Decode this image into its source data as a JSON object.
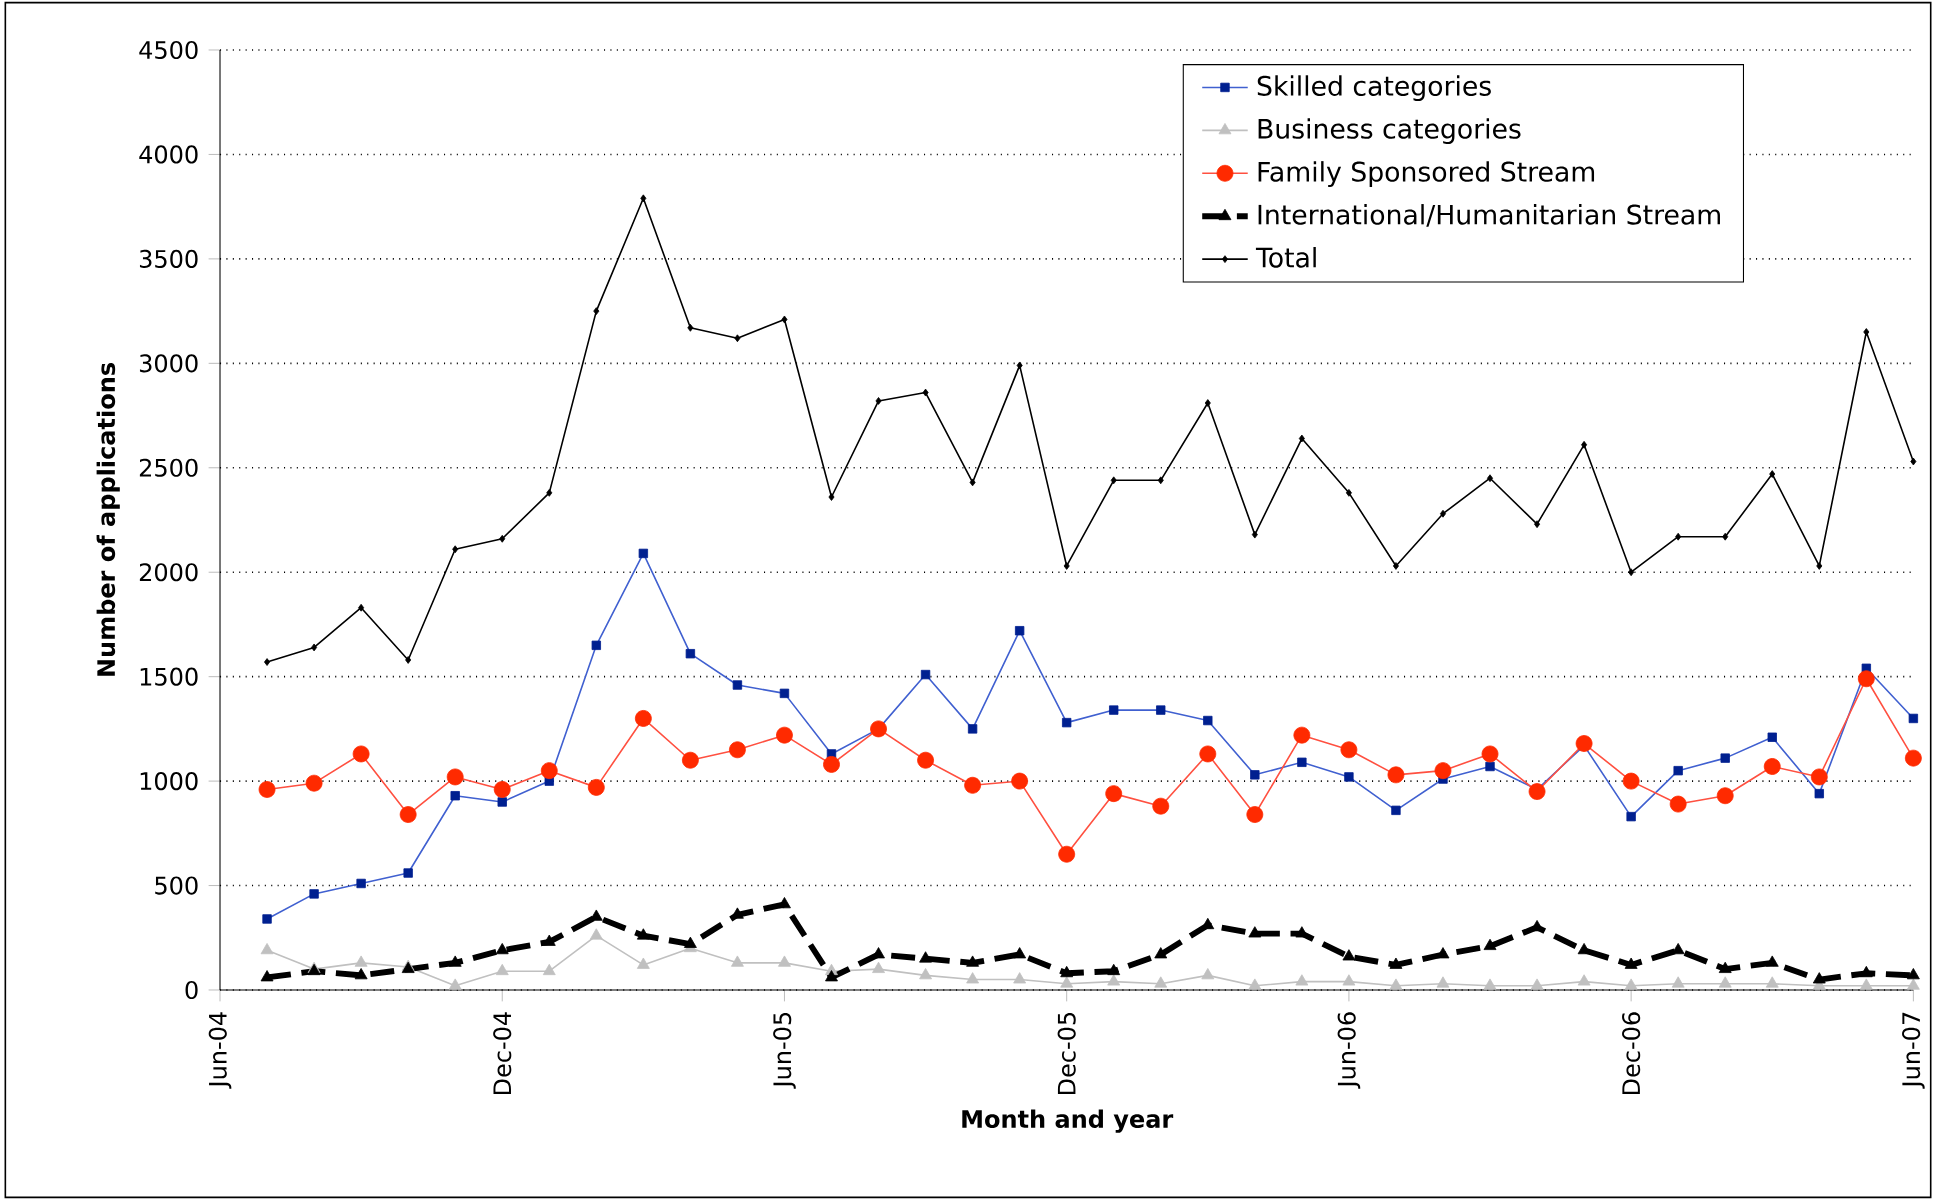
{
  "chart_data": {
    "type": "line",
    "xlabel": "Month and year",
    "ylabel": "Number of applications",
    "x": [
      "2004-07",
      "2004-08",
      "2004-09",
      "2004-10",
      "2004-11",
      "2004-12",
      "2005-01",
      "2005-02",
      "2005-03",
      "2005-04",
      "2005-05",
      "2005-06",
      "2005-07",
      "2005-08",
      "2005-09",
      "2005-10",
      "2005-11",
      "2005-12",
      "2006-01",
      "2006-02",
      "2006-03",
      "2006-04",
      "2006-05",
      "2006-06",
      "2006-07",
      "2006-08",
      "2006-09",
      "2006-10",
      "2006-11",
      "2006-12",
      "2007-01",
      "2007-02",
      "2007-03",
      "2007-04",
      "2007-05",
      "2007-06"
    ],
    "series": [
      {
        "name": "Skilled categories",
        "color": "#002090",
        "marker": "square",
        "line_style": "solid",
        "values": [
          340,
          460,
          510,
          560,
          930,
          900,
          1000,
          1650,
          2090,
          1610,
          1460,
          1420,
          1130,
          1250,
          1510,
          1250,
          1720,
          1280,
          1340,
          1340,
          1290,
          1030,
          1090,
          1020,
          860,
          1010,
          1070,
          960,
          1170,
          830,
          1050,
          1110,
          1210,
          940,
          1540,
          1300
        ]
      },
      {
        "name": "Business categories",
        "color": "#c0c0c0",
        "marker": "triangle",
        "line_style": "solid",
        "values": [
          190,
          100,
          130,
          110,
          20,
          90,
          90,
          260,
          120,
          200,
          130,
          130,
          90,
          100,
          70,
          50,
          50,
          30,
          40,
          30,
          70,
          20,
          40,
          40,
          20,
          30,
          20,
          20,
          40,
          20,
          30,
          30,
          30,
          20,
          20,
          20
        ]
      },
      {
        "name": "Family Sponsored Stream",
        "color": "#ff2a00",
        "marker": "circle",
        "line_style": "solid",
        "values": [
          960,
          990,
          1130,
          840,
          1020,
          960,
          1050,
          970,
          1300,
          1100,
          1150,
          1220,
          1080,
          1250,
          1100,
          980,
          1000,
          650,
          940,
          880,
          1130,
          840,
          1220,
          1150,
          1030,
          1050,
          1130,
          950,
          1180,
          1000,
          890,
          930,
          1070,
          1020,
          1490,
          1110
        ]
      },
      {
        "name": "International/Humanitarian Stream",
        "color": "#000000",
        "marker": "triangle",
        "line_style": "dashed",
        "values": [
          60,
          90,
          70,
          100,
          130,
          190,
          230,
          350,
          260,
          220,
          360,
          410,
          60,
          170,
          150,
          130,
          170,
          80,
          90,
          170,
          310,
          270,
          270,
          160,
          120,
          170,
          210,
          300,
          190,
          120,
          190,
          100,
          130,
          50,
          80,
          70
        ]
      },
      {
        "name": "Total",
        "color": "#000000",
        "marker": "diamond",
        "line_style": "solid",
        "values": [
          1570,
          1640,
          1830,
          1580,
          2110,
          2160,
          2380,
          3250,
          3790,
          3170,
          3120,
          3210,
          2360,
          2820,
          2860,
          2430,
          2990,
          2030,
          2440,
          2440,
          2810,
          2180,
          2640,
          2380,
          2030,
          2280,
          2450,
          2230,
          2610,
          2000,
          2170,
          2170,
          2470,
          2030,
          3150,
          2530
        ]
      }
    ],
    "xlim": [
      "2004-06",
      "2007-06"
    ],
    "xticks": [
      {
        "value": "2004-06",
        "label": "Jun-04"
      },
      {
        "value": "2004-12",
        "label": "Dec-04"
      },
      {
        "value": "2005-06",
        "label": "Jun-05"
      },
      {
        "value": "2005-12",
        "label": "Dec-05"
      },
      {
        "value": "2006-06",
        "label": "Jun-06"
      },
      {
        "value": "2006-12",
        "label": "Dec-06"
      },
      {
        "value": "2007-06",
        "label": "Jun-07"
      }
    ],
    "ylim": [
      0,
      4500
    ],
    "yticks": [
      0,
      500,
      1000,
      1500,
      2000,
      2500,
      3000,
      3500,
      4000,
      4500
    ],
    "grid": "y",
    "legend": "top right"
  }
}
